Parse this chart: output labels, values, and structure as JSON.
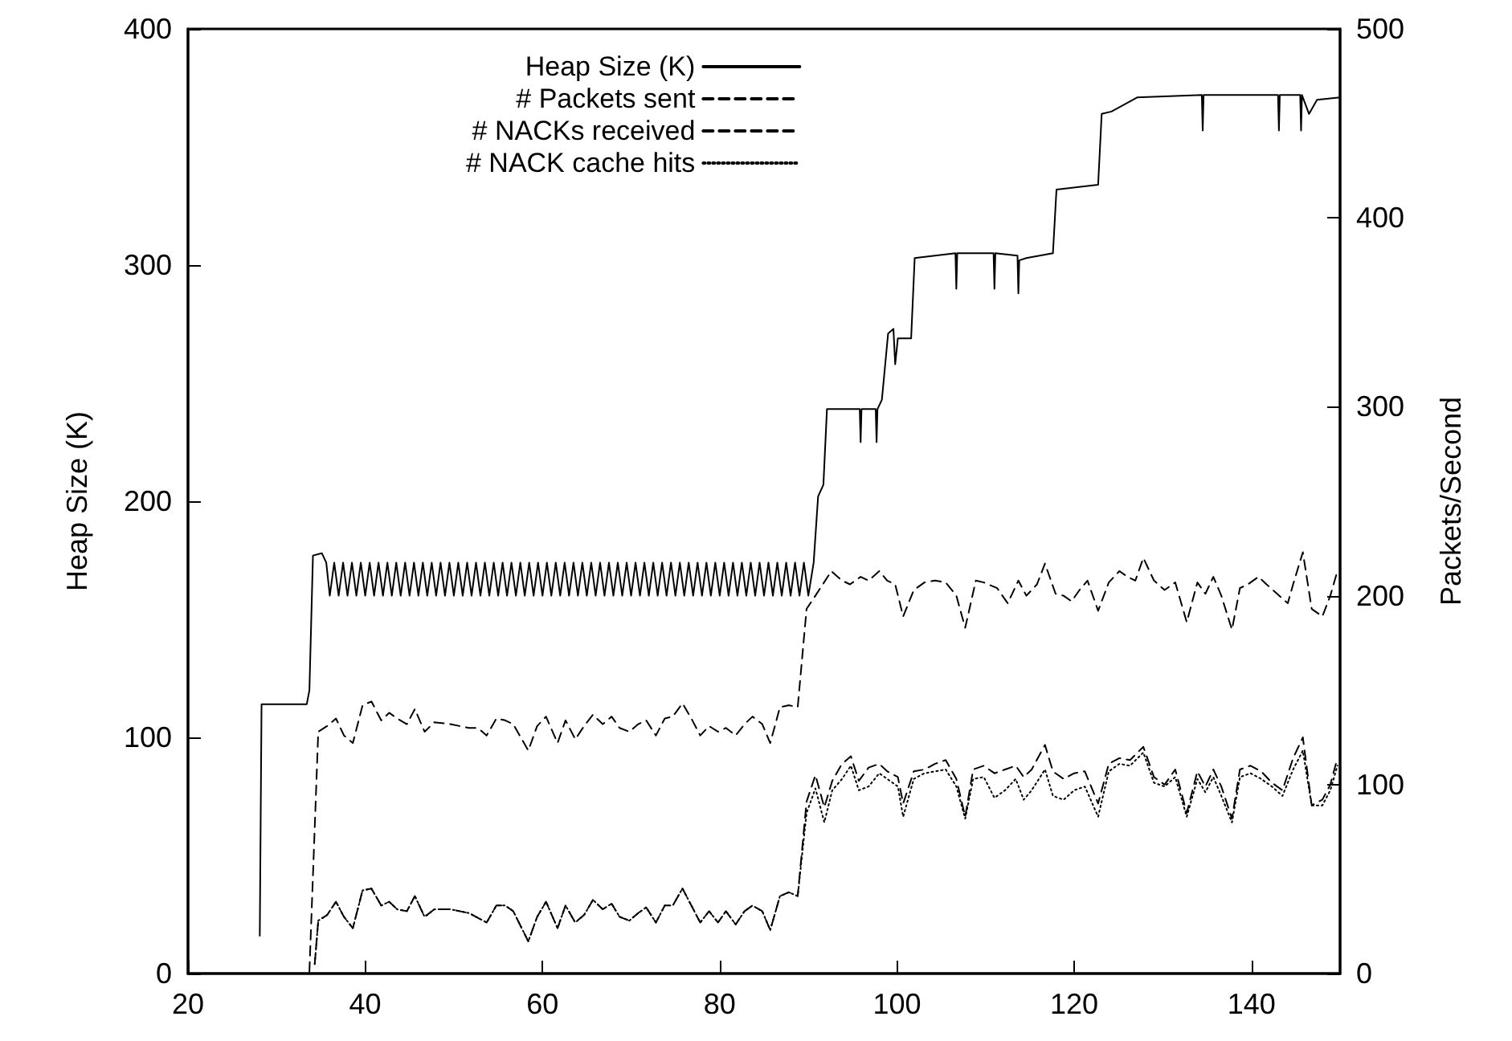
{
  "chart_data": {
    "type": "line",
    "ylabel": "Heap Size (K)",
    "y2label": "Packets/Second",
    "xlim": [
      20,
      150
    ],
    "xticks": [
      20,
      40,
      60,
      80,
      100,
      120,
      140
    ],
    "ylim": [
      0,
      400
    ],
    "yticks": [
      0,
      100,
      200,
      300,
      400
    ],
    "y2lim": [
      0,
      500
    ],
    "y2ticks": [
      0,
      100,
      200,
      300,
      400,
      500
    ],
    "grid": false,
    "legend": "top left",
    "marker": "none",
    "series": [
      {
        "name": "Heap Size (K)",
        "color": "#000000",
        "line_style": "solid",
        "axis": "y",
        "x": [
          28.1,
          28.3,
          33.4,
          33.7,
          34.1,
          35.1,
          35.6,
          36,
          36.5,
          37,
          37.5,
          38,
          38.5,
          39,
          39.5,
          40,
          40.5,
          41,
          41.5,
          42,
          42.5,
          43,
          43.5,
          44,
          44.5,
          45,
          45.5,
          46,
          46.5,
          47,
          47.5,
          48,
          48.5,
          49,
          49.5,
          50,
          50.5,
          51,
          51.5,
          52,
          52.5,
          53,
          53.5,
          54,
          54.5,
          55,
          55.5,
          56,
          56.5,
          57,
          57.5,
          58,
          58.5,
          59,
          59.5,
          60,
          60.5,
          61,
          61.5,
          62,
          62.5,
          63,
          63.5,
          64,
          64.5,
          65,
          65.5,
          66,
          66.5,
          67,
          67.5,
          68,
          68.5,
          69,
          69.5,
          70,
          70.5,
          71,
          71.5,
          72,
          72.5,
          73,
          73.5,
          74,
          74.5,
          75,
          75.5,
          76,
          76.5,
          77,
          77.5,
          78,
          78.5,
          79,
          79.5,
          80,
          80.5,
          81,
          81.5,
          82,
          82.5,
          83,
          83.5,
          84,
          84.5,
          85,
          85.5,
          86,
          86.5,
          87,
          87.5,
          88,
          88.5,
          89,
          89.5,
          90,
          90.6,
          91.1,
          91.7,
          92.1,
          95.8,
          95.9,
          96,
          97.6,
          97.7,
          97.8,
          98.3,
          99,
          99.6,
          99.8,
          100.1,
          101.6,
          102,
          106.6,
          106.7,
          106.8,
          110.9,
          111,
          111.1,
          113.6,
          113.7,
          113.8,
          114.6,
          117.6,
          118,
          122.7,
          123.1,
          124.2,
          127.1,
          134.4,
          134.5,
          134.6,
          143,
          143.1,
          143.2,
          145.5,
          145.6,
          145.7,
          146.5,
          147.4,
          150
        ],
        "values": [
          16,
          114,
          114,
          120,
          177,
          178,
          174,
          160,
          174,
          160,
          174,
          160,
          174,
          160,
          174,
          160,
          174,
          160,
          174,
          160,
          174,
          160,
          174,
          160,
          174,
          160,
          174,
          160,
          174,
          160,
          174,
          160,
          174,
          160,
          174,
          160,
          174,
          160,
          174,
          160,
          174,
          160,
          174,
          160,
          174,
          160,
          174,
          160,
          174,
          160,
          174,
          160,
          174,
          160,
          174,
          160,
          174,
          160,
          174,
          160,
          174,
          160,
          174,
          160,
          174,
          160,
          174,
          160,
          174,
          160,
          174,
          160,
          174,
          160,
          174,
          160,
          174,
          160,
          174,
          160,
          174,
          160,
          174,
          160,
          174,
          160,
          174,
          160,
          174,
          160,
          174,
          160,
          174,
          160,
          174,
          160,
          174,
          160,
          174,
          160,
          174,
          160,
          174,
          160,
          174,
          160,
          174,
          160,
          174,
          160,
          174,
          160,
          174,
          160,
          174,
          160,
          174,
          202,
          207,
          239,
          239,
          225,
          239,
          239,
          225,
          239,
          243,
          271,
          273,
          258,
          269,
          269,
          303,
          305,
          290,
          305,
          305,
          290,
          305,
          304,
          288,
          302,
          303,
          305,
          332,
          334,
          364,
          365,
          371,
          372,
          357,
          372,
          372,
          357,
          372,
          372,
          357,
          372,
          364,
          370,
          371
        ]
      },
      {
        "name": "# Packets sent",
        "color": "#000000",
        "line_style": "dashed",
        "axis": "y2",
        "x": [
          33.7,
          34.7,
          35.7,
          36.7,
          37.6,
          38.6,
          39.7,
          40.7,
          41.8,
          42.7,
          43.6,
          44.7,
          45.6,
          46.7,
          47.8,
          49.6,
          51.7,
          52.7,
          53.7,
          54.8,
          55.8,
          56.7,
          58.4,
          59.4,
          60.4,
          61.7,
          62.6,
          63.7,
          64.7,
          65.7,
          66.8,
          67.8,
          68.7,
          69.8,
          70.8,
          71.7,
          72.8,
          73.8,
          74.7,
          75.8,
          76.8,
          77.8,
          78.8,
          79.8,
          80.7,
          81.8,
          82.8,
          83.7,
          84.8,
          85.7,
          86.8,
          87.8,
          88.8,
          89.8,
          90.8,
          92.6,
          93.8,
          94.7,
          95.9,
          96.8,
          98,
          98.9,
          99.8,
          100.7,
          101.9,
          103.1,
          104.3,
          105.5,
          106.7,
          107.7,
          108.9,
          109.8,
          111.3,
          112.5,
          113.7,
          114.6,
          115.8,
          116.7,
          117.9,
          118.8,
          119.7,
          120.6,
          121.5,
          122.7,
          123.9,
          125.1,
          126,
          126.9,
          127.8,
          129,
          130.2,
          131.4,
          132.7,
          133.9,
          134.8,
          135.7,
          136.6,
          137.8,
          138.7,
          139.6,
          140.8,
          141.7,
          142.9,
          144.1,
          144.7,
          145.8,
          146.8,
          148,
          148.9,
          149.7
        ],
        "values": [
          1,
          128,
          131,
          135,
          126,
          122,
          142,
          144,
          134,
          138,
          135,
          132,
          140,
          128,
          133,
          132,
          130,
          130,
          126,
          135,
          134,
          132,
          118,
          131,
          136,
          122,
          134,
          124,
          131,
          137,
          132,
          136,
          130,
          128,
          132,
          134,
          126,
          135,
          136,
          143,
          135,
          126,
          131,
          128,
          130,
          126,
          132,
          136,
          132,
          122,
          141,
          142,
          141,
          193,
          200,
          213,
          208,
          206,
          210,
          208,
          213,
          208,
          206,
          189,
          203,
          207,
          208,
          207,
          200,
          183,
          208,
          207,
          204,
          196,
          208,
          200,
          206,
          217,
          201,
          200,
          197,
          203,
          208,
          192,
          207,
          213,
          210,
          208,
          220,
          208,
          203,
          207,
          186,
          207,
          201,
          210,
          200,
          182,
          204,
          206,
          210,
          206,
          201,
          196,
          206,
          223,
          193,
          189,
          200,
          213
        ]
      },
      {
        "name": "# NACKs received",
        "color": "#000000",
        "line_style": "dashed",
        "axis": "y2",
        "x": [
          34.3,
          34.7,
          35.7,
          36.7,
          37.6,
          38.6,
          39.7,
          40.7,
          41.8,
          42.7,
          43.6,
          44.7,
          45.6,
          46.7,
          47.8,
          49.6,
          51.7,
          53.7,
          54.8,
          55.8,
          56.7,
          58.4,
          59.4,
          60.4,
          61.7,
          62.6,
          63.7,
          64.7,
          65.7,
          66.8,
          67.8,
          68.7,
          69.8,
          70.8,
          71.7,
          72.8,
          73.8,
          74.7,
          75.8,
          76.8,
          77.8,
          78.8,
          79.8,
          80.7,
          81.8,
          82.8,
          83.7,
          84.8,
          85.7,
          86.8,
          87.8,
          88.8,
          89.8,
          90.8,
          91.8,
          92.7,
          93.8,
          94.8,
          95.7,
          96.8,
          98,
          98.9,
          100.1,
          100.7,
          101.9,
          103.1,
          104.3,
          105.5,
          106.7,
          107.7,
          108.6,
          109.8,
          111,
          112.2,
          113.4,
          114.3,
          115.2,
          116.7,
          117.6,
          118.8,
          120,
          121.2,
          122.7,
          123.9,
          125.1,
          126.3,
          127.8,
          129,
          130.2,
          131.4,
          132.7,
          133.9,
          134.8,
          135.7,
          136.6,
          137.8,
          138.7,
          139.9,
          141.1,
          142.3,
          143.5,
          144.7,
          145.8,
          146.8,
          148,
          148.9,
          149.7
        ],
        "values": [
          5,
          28,
          31,
          38,
          30,
          24,
          44,
          45,
          36,
          38,
          34,
          33,
          41,
          30,
          34,
          34,
          32,
          27,
          36,
          36,
          33,
          17,
          30,
          38,
          24,
          36,
          27,
          31,
          39,
          34,
          37,
          30,
          28,
          32,
          35,
          27,
          36,
          36,
          45,
          36,
          27,
          33,
          27,
          33,
          26,
          33,
          36,
          33,
          23,
          41,
          43,
          41,
          91,
          105,
          88,
          102,
          111,
          115,
          102,
          109,
          111,
          107,
          104,
          90,
          107,
          108,
          111,
          113,
          103,
          83,
          108,
          110,
          106,
          108,
          110,
          104,
          108,
          121,
          107,
          103,
          106,
          107,
          90,
          111,
          114,
          113,
          120,
          104,
          100,
          108,
          85,
          107,
          99,
          108,
          99,
          82,
          108,
          110,
          107,
          101,
          97,
          114,
          125,
          89,
          92,
          100,
          114
        ]
      },
      {
        "name": "# NACK cache hits",
        "color": "#000000",
        "line_style": "dotted",
        "axis": "y2",
        "x": [
          34.3,
          34.7,
          35.7,
          36.7,
          37.6,
          38.6,
          39.7,
          40.7,
          41.8,
          42.7,
          43.6,
          44.7,
          45.6,
          46.7,
          47.8,
          49.6,
          51.7,
          53.7,
          54.8,
          55.8,
          56.7,
          58.4,
          59.4,
          60.4,
          61.7,
          62.6,
          63.7,
          64.7,
          65.7,
          66.8,
          67.8,
          68.7,
          69.8,
          70.8,
          71.7,
          72.8,
          73.8,
          74.7,
          75.8,
          76.8,
          77.8,
          78.8,
          79.8,
          80.7,
          81.8,
          82.8,
          83.7,
          84.8,
          85.7,
          86.8,
          87.8,
          88.8,
          89.8,
          90.8,
          91.8,
          92.7,
          93.8,
          94.8,
          95.7,
          96.8,
          98,
          98.9,
          100.1,
          100.7,
          101.9,
          103.1,
          104.3,
          105.5,
          106.7,
          107.7,
          108.6,
          109.8,
          111,
          112.2,
          113.4,
          114.3,
          115.2,
          116.7,
          117.6,
          118.8,
          120,
          121.2,
          122.7,
          123.9,
          125.1,
          126.3,
          127.8,
          129,
          130.2,
          131.4,
          132.7,
          133.9,
          134.8,
          135.7,
          136.6,
          137.8,
          138.7,
          139.9,
          141.1,
          142.3,
          143.5,
          144.7,
          145.8,
          146.8,
          148,
          148.9,
          149.7
        ],
        "values": [
          5,
          28,
          31,
          38,
          30,
          24,
          44,
          45,
          36,
          38,
          34,
          33,
          41,
          30,
          34,
          34,
          32,
          27,
          36,
          36,
          33,
          17,
          30,
          38,
          24,
          36,
          27,
          31,
          39,
          34,
          37,
          30,
          28,
          32,
          35,
          27,
          36,
          36,
          45,
          36,
          27,
          33,
          27,
          33,
          26,
          33,
          36,
          33,
          23,
          41,
          43,
          41,
          85,
          98,
          80,
          97,
          103,
          110,
          97,
          99,
          106,
          103,
          99,
          83,
          103,
          106,
          107,
          108,
          99,
          82,
          103,
          104,
          93,
          97,
          103,
          92,
          97,
          108,
          94,
          92,
          97,
          99,
          83,
          107,
          111,
          110,
          117,
          101,
          99,
          104,
          83,
          103,
          96,
          104,
          94,
          80,
          104,
          106,
          103,
          99,
          94,
          108,
          118,
          89,
          89,
          97,
          110
        ]
      }
    ]
  }
}
